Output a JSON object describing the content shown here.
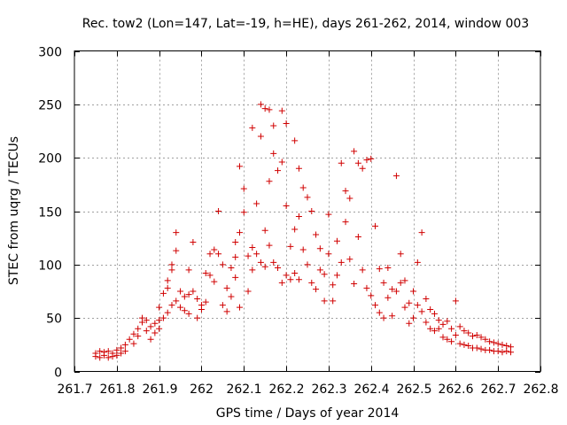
{
  "chart_data": {
    "type": "scatter",
    "title": "Rec. tow2 (Lon=147, Lat=-19, h=HE), days 261-262, 2014, window 003",
    "xlabel": "GPS time / Days of year 2014",
    "ylabel": "STEC from uqrg / TECUs",
    "xlim": [
      261.7,
      262.8
    ],
    "ylim": [
      0,
      300
    ],
    "x_ticks": [
      "261.7",
      "261.8",
      "261.9",
      "262",
      "262.1",
      "262.2",
      "262.3",
      "262.4",
      "262.5",
      "262.6",
      "262.7",
      "262.8"
    ],
    "y_ticks": [
      "0",
      "50",
      "100",
      "150",
      "200",
      "250",
      "300"
    ],
    "grid": true,
    "marker": "+",
    "colors": {
      "points": "#d00000"
    },
    "series": [
      {
        "points": [
          [
            261.75,
            17
          ],
          [
            261.75,
            14
          ],
          [
            261.76,
            19
          ],
          [
            261.76,
            13
          ],
          [
            261.77,
            18
          ],
          [
            261.77,
            15
          ],
          [
            261.78,
            19
          ],
          [
            261.78,
            13
          ],
          [
            261.79,
            17
          ],
          [
            261.79,
            14
          ],
          [
            261.8,
            20
          ],
          [
            261.8,
            15
          ],
          [
            261.81,
            22
          ],
          [
            261.81,
            17
          ],
          [
            261.82,
            25
          ],
          [
            261.82,
            19
          ],
          [
            261.83,
            30
          ],
          [
            261.84,
            35
          ],
          [
            261.84,
            26
          ],
          [
            261.85,
            40
          ],
          [
            261.85,
            33
          ],
          [
            261.86,
            50
          ],
          [
            261.86,
            46
          ],
          [
            261.87,
            48
          ],
          [
            261.87,
            38
          ],
          [
            261.88,
            42
          ],
          [
            261.88,
            30
          ],
          [
            261.89,
            45
          ],
          [
            261.89,
            36
          ],
          [
            261.9,
            48
          ],
          [
            261.9,
            40
          ],
          [
            261.9,
            60
          ],
          [
            261.91,
            73
          ],
          [
            261.91,
            50
          ],
          [
            261.92,
            85
          ],
          [
            261.92,
            78
          ],
          [
            261.92,
            55
          ],
          [
            261.93,
            100
          ],
          [
            261.93,
            95
          ],
          [
            261.93,
            62
          ],
          [
            261.94,
            130
          ],
          [
            261.94,
            113
          ],
          [
            261.94,
            66
          ],
          [
            261.95,
            75
          ],
          [
            261.95,
            60
          ],
          [
            261.96,
            70
          ],
          [
            261.96,
            57
          ],
          [
            261.97,
            95
          ],
          [
            261.97,
            72
          ],
          [
            261.97,
            54
          ],
          [
            261.98,
            121
          ],
          [
            261.98,
            75
          ],
          [
            261.99,
            68
          ],
          [
            261.99,
            50
          ],
          [
            262.0,
            62
          ],
          [
            262.0,
            58
          ],
          [
            262.01,
            92
          ],
          [
            262.01,
            65
          ],
          [
            262.02,
            110
          ],
          [
            262.02,
            90
          ],
          [
            262.03,
            114
          ],
          [
            262.03,
            84
          ],
          [
            262.04,
            150
          ],
          [
            262.04,
            110
          ],
          [
            262.05,
            100
          ],
          [
            262.05,
            62
          ],
          [
            262.06,
            78
          ],
          [
            262.06,
            56
          ],
          [
            262.07,
            97
          ],
          [
            262.07,
            70
          ],
          [
            262.08,
            121
          ],
          [
            262.08,
            107
          ],
          [
            262.08,
            88
          ],
          [
            262.09,
            192
          ],
          [
            262.09,
            130
          ],
          [
            262.09,
            60
          ],
          [
            262.1,
            171
          ],
          [
            262.1,
            149
          ],
          [
            262.11,
            108
          ],
          [
            262.11,
            75
          ],
          [
            262.12,
            228
          ],
          [
            262.12,
            116
          ],
          [
            262.12,
            95
          ],
          [
            262.13,
            157
          ],
          [
            262.13,
            110
          ],
          [
            262.14,
            250
          ],
          [
            262.14,
            220
          ],
          [
            262.14,
            102
          ],
          [
            262.15,
            246
          ],
          [
            262.15,
            132
          ],
          [
            262.15,
            98
          ],
          [
            262.16,
            245
          ],
          [
            262.16,
            178
          ],
          [
            262.16,
            118
          ],
          [
            262.17,
            230
          ],
          [
            262.17,
            204
          ],
          [
            262.17,
            102
          ],
          [
            262.18,
            188
          ],
          [
            262.18,
            97
          ],
          [
            262.19,
            244
          ],
          [
            262.19,
            196
          ],
          [
            262.19,
            83
          ],
          [
            262.2,
            232
          ],
          [
            262.2,
            155
          ],
          [
            262.2,
            90
          ],
          [
            262.21,
            117
          ],
          [
            262.21,
            86
          ],
          [
            262.22,
            216
          ],
          [
            262.22,
            133
          ],
          [
            262.22,
            92
          ],
          [
            262.23,
            190
          ],
          [
            262.23,
            145
          ],
          [
            262.23,
            86
          ],
          [
            262.24,
            172
          ],
          [
            262.24,
            114
          ],
          [
            262.25,
            163
          ],
          [
            262.25,
            100
          ],
          [
            262.26,
            150
          ],
          [
            262.26,
            83
          ],
          [
            262.27,
            128
          ],
          [
            262.27,
            77
          ],
          [
            262.28,
            115
          ],
          [
            262.28,
            95
          ],
          [
            262.29,
            91
          ],
          [
            262.29,
            66
          ],
          [
            262.3,
            147
          ],
          [
            262.3,
            110
          ],
          [
            262.31,
            81
          ],
          [
            262.31,
            66
          ],
          [
            262.32,
            122
          ],
          [
            262.32,
            90
          ],
          [
            262.33,
            195
          ],
          [
            262.33,
            102
          ],
          [
            262.34,
            169
          ],
          [
            262.34,
            140
          ],
          [
            262.35,
            162
          ],
          [
            262.35,
            105
          ],
          [
            262.36,
            206
          ],
          [
            262.36,
            82
          ],
          [
            262.37,
            195
          ],
          [
            262.37,
            126
          ],
          [
            262.38,
            190
          ],
          [
            262.38,
            95
          ],
          [
            262.39,
            198
          ],
          [
            262.39,
            78
          ],
          [
            262.4,
            199
          ],
          [
            262.4,
            71
          ],
          [
            262.41,
            136
          ],
          [
            262.41,
            62
          ],
          [
            262.42,
            96
          ],
          [
            262.42,
            55
          ],
          [
            262.43,
            83
          ],
          [
            262.43,
            50
          ],
          [
            262.44,
            97
          ],
          [
            262.44,
            69
          ],
          [
            262.45,
            77
          ],
          [
            262.45,
            52
          ],
          [
            262.46,
            183
          ],
          [
            262.46,
            75
          ],
          [
            262.47,
            110
          ],
          [
            262.47,
            83
          ],
          [
            262.48,
            85
          ],
          [
            262.48,
            60
          ],
          [
            262.49,
            64
          ],
          [
            262.49,
            45
          ],
          [
            262.5,
            75
          ],
          [
            262.5,
            50
          ],
          [
            262.51,
            102
          ],
          [
            262.51,
            62
          ],
          [
            262.52,
            130
          ],
          [
            262.52,
            56
          ],
          [
            262.53,
            68
          ],
          [
            262.53,
            46
          ],
          [
            262.54,
            58
          ],
          [
            262.54,
            40
          ],
          [
            262.55,
            54
          ],
          [
            262.55,
            38
          ],
          [
            262.56,
            48
          ],
          [
            262.56,
            40
          ],
          [
            262.57,
            44
          ],
          [
            262.57,
            32
          ],
          [
            262.58,
            47
          ],
          [
            262.58,
            30
          ],
          [
            262.59,
            40
          ],
          [
            262.59,
            28
          ],
          [
            262.6,
            66
          ],
          [
            262.6,
            34
          ],
          [
            262.61,
            42
          ],
          [
            262.61,
            26
          ],
          [
            262.62,
            38
          ],
          [
            262.62,
            25
          ],
          [
            262.63,
            36
          ],
          [
            262.63,
            24
          ],
          [
            262.64,
            33
          ],
          [
            262.64,
            22
          ],
          [
            262.65,
            34
          ],
          [
            262.65,
            22
          ],
          [
            262.66,
            32
          ],
          [
            262.66,
            21
          ],
          [
            262.67,
            30
          ],
          [
            262.67,
            20
          ],
          [
            262.68,
            28
          ],
          [
            262.68,
            20
          ],
          [
            262.69,
            27
          ],
          [
            262.69,
            19
          ],
          [
            262.7,
            26
          ],
          [
            262.7,
            19
          ],
          [
            262.71,
            25
          ],
          [
            262.71,
            18
          ],
          [
            262.72,
            24
          ],
          [
            262.72,
            19
          ],
          [
            262.73,
            23
          ],
          [
            262.73,
            18
          ]
        ]
      }
    ]
  }
}
